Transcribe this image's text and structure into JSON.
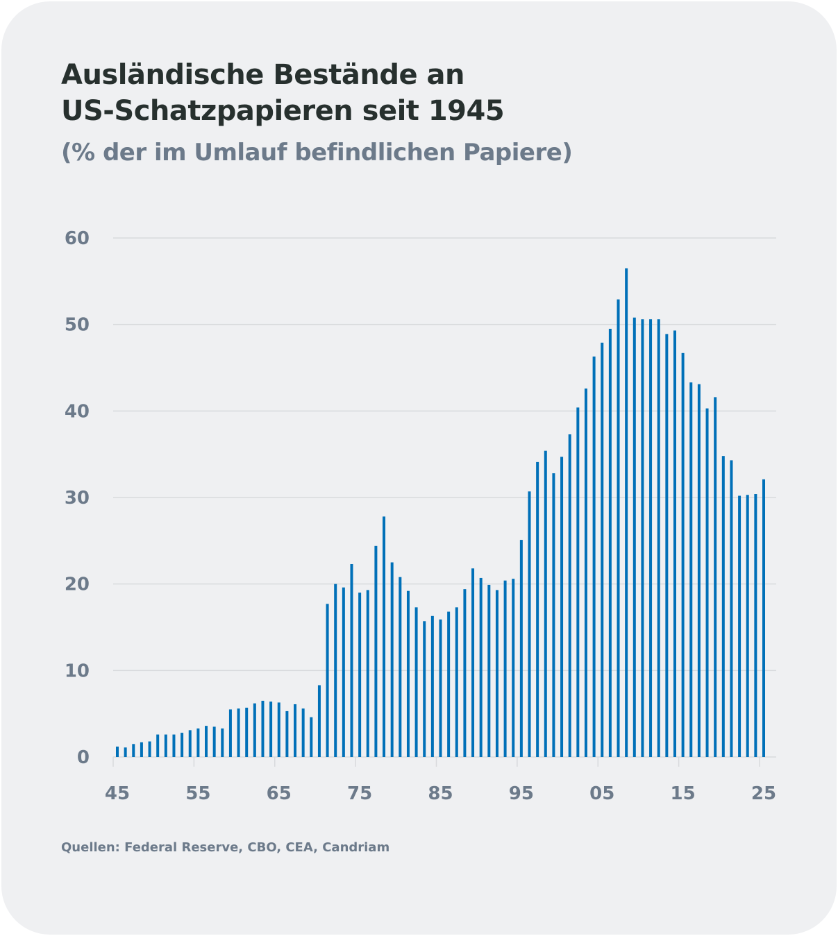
{
  "chart_data": {
    "type": "bar",
    "title": "Ausländische Bestände an US-Schatzpapieren seit 1945",
    "subtitle": "(% der im Umlauf befindlichen Papiere)",
    "xlabel": "",
    "ylabel": "",
    "ylim": [
      0,
      60
    ],
    "yticks": [
      0,
      10,
      20,
      30,
      40,
      50,
      60
    ],
    "xtick_labels": [
      "45",
      "55",
      "65",
      "75",
      "85",
      "95",
      "05",
      "15",
      "25"
    ],
    "xtick_years": [
      1945,
      1955,
      1965,
      1975,
      1985,
      1995,
      2005,
      2015,
      2025
    ],
    "grid": true,
    "color": "#0070b8",
    "x": [
      1945,
      1946,
      1947,
      1948,
      1949,
      1950,
      1951,
      1952,
      1953,
      1954,
      1955,
      1956,
      1957,
      1958,
      1959,
      1960,
      1961,
      1962,
      1963,
      1964,
      1965,
      1966,
      1967,
      1968,
      1969,
      1970,
      1971,
      1972,
      1973,
      1974,
      1975,
      1976,
      1977,
      1978,
      1979,
      1980,
      1981,
      1982,
      1983,
      1984,
      1985,
      1986,
      1987,
      1988,
      1989,
      1990,
      1991,
      1992,
      1993,
      1994,
      1995,
      1996,
      1997,
      1998,
      1999,
      2000,
      2001,
      2002,
      2003,
      2004,
      2005,
      2006,
      2007,
      2008,
      2009,
      2010,
      2011,
      2012,
      2013,
      2014,
      2015,
      2016,
      2017,
      2018,
      2019,
      2020,
      2021,
      2022,
      2023,
      2024,
      2025
    ],
    "values": [
      1.2,
      1.1,
      1.5,
      1.7,
      1.8,
      2.6,
      2.6,
      2.6,
      2.8,
      3.1,
      3.3,
      3.6,
      3.5,
      3.3,
      5.5,
      5.6,
      5.7,
      6.2,
      6.5,
      6.4,
      6.3,
      5.3,
      6.1,
      5.6,
      4.6,
      8.3,
      17.7,
      20.0,
      19.6,
      22.3,
      19.0,
      19.3,
      24.4,
      27.8,
      22.5,
      20.8,
      19.2,
      17.3,
      15.7,
      16.3,
      15.9,
      16.8,
      17.3,
      19.4,
      21.8,
      20.7,
      19.9,
      19.3,
      20.4,
      20.6,
      25.1,
      30.7,
      34.1,
      35.4,
      32.8,
      34.7,
      37.3,
      40.4,
      42.6,
      46.3,
      47.9,
      49.5,
      52.9,
      56.5,
      50.8,
      50.6,
      50.6,
      50.6,
      48.9,
      49.3,
      46.7,
      43.3,
      43.1,
      40.3,
      41.6,
      34.8,
      34.3,
      30.2,
      30.3,
      30.4,
      32.1
    ]
  },
  "header": {
    "title_line1": "Ausländische Bestände an",
    "title_line2": "US-Schatzpapieren seit 1945",
    "subtitle": "(% der im Umlauf befindlichen Papiere)"
  },
  "footer": {
    "source": "Quellen: Federal Reserve, CBO, CEA, Candriam"
  }
}
